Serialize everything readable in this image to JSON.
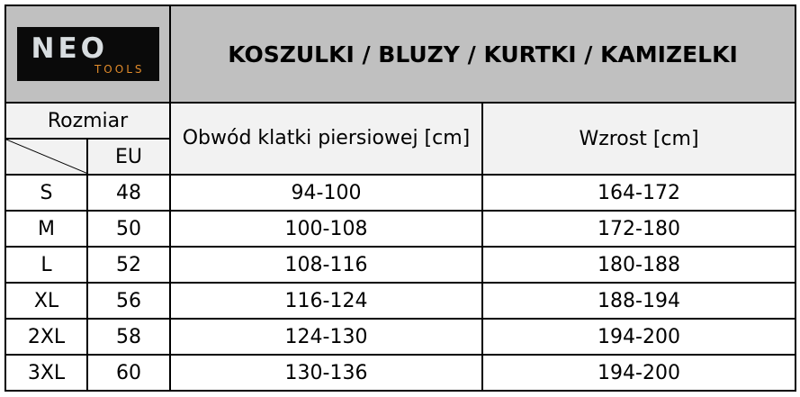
{
  "logo": {
    "brand": "NEO",
    "sub": "TOOLS"
  },
  "title": "KOSZULKI / BLUZY / KURTKI / KAMIZELKI",
  "headers": {
    "size": "Rozmiar",
    "eu": "EU",
    "chest": "Obwód klatki piersiowej [cm]",
    "height": "Wzrost [cm]"
  },
  "rows": [
    {
      "size": "S",
      "eu": "48",
      "chest": "94-100",
      "height": "164-172"
    },
    {
      "size": "M",
      "eu": "50",
      "chest": "100-108",
      "height": "172-180"
    },
    {
      "size": "L",
      "eu": "52",
      "chest": "108-116",
      "height": "180-188"
    },
    {
      "size": "XL",
      "eu": "56",
      "chest": "116-124",
      "height": "188-194"
    },
    {
      "size": "2XL",
      "eu": "58",
      "chest": "124-130",
      "height": "194-200"
    },
    {
      "size": "3XL",
      "eu": "60",
      "chest": "130-136",
      "height": "194-200"
    }
  ]
}
